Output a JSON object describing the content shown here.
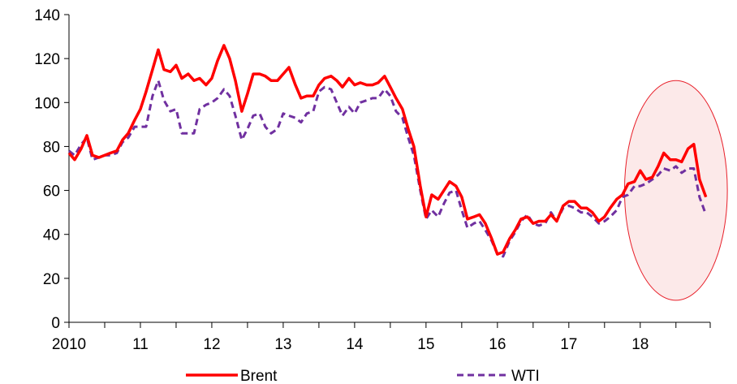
{
  "chart_data": {
    "type": "line",
    "title": "",
    "xlabel": "",
    "ylabel": "",
    "ylim": [
      0,
      140
    ],
    "y_ticks": [
      "0",
      "20",
      "40",
      "60",
      "80",
      "100",
      "120",
      "140"
    ],
    "x_tick_labels": [
      "2010",
      "11",
      "12",
      "13",
      "14",
      "15",
      "16",
      "17",
      "18"
    ],
    "x_tick_values": [
      2010,
      2011,
      2012,
      2013,
      2014,
      2015,
      2016,
      2017,
      2018
    ],
    "xlim": [
      2010,
      2018.98
    ],
    "grid": false,
    "legend_position": "bottom",
    "x": [
      2010.0,
      2010.08,
      2010.17,
      2010.25,
      2010.33,
      2010.42,
      2010.5,
      2010.58,
      2010.67,
      2010.75,
      2010.83,
      2010.92,
      2011.0,
      2011.08,
      2011.17,
      2011.25,
      2011.33,
      2011.42,
      2011.5,
      2011.58,
      2011.67,
      2011.75,
      2011.83,
      2011.92,
      2012.0,
      2012.08,
      2012.17,
      2012.25,
      2012.33,
      2012.42,
      2012.5,
      2012.58,
      2012.67,
      2012.75,
      2012.83,
      2012.92,
      2013.0,
      2013.08,
      2013.17,
      2013.25,
      2013.33,
      2013.42,
      2013.5,
      2013.58,
      2013.67,
      2013.75,
      2013.83,
      2013.92,
      2014.0,
      2014.08,
      2014.17,
      2014.25,
      2014.33,
      2014.42,
      2014.5,
      2014.58,
      2014.67,
      2014.75,
      2014.83,
      2014.92,
      2015.0,
      2015.08,
      2015.17,
      2015.25,
      2015.33,
      2015.42,
      2015.5,
      2015.58,
      2015.67,
      2015.75,
      2015.83,
      2015.92,
      2016.0,
      2016.08,
      2016.17,
      2016.25,
      2016.33,
      2016.42,
      2016.5,
      2016.58,
      2016.67,
      2016.75,
      2016.83,
      2016.92,
      2017.0,
      2017.08,
      2017.17,
      2017.25,
      2017.33,
      2017.42,
      2017.5,
      2017.58,
      2017.67,
      2017.75,
      2017.83,
      2017.92,
      2018.0,
      2018.08,
      2018.17,
      2018.25,
      2018.33,
      2018.42,
      2018.5,
      2018.58,
      2018.67,
      2018.75,
      2018.83,
      2018.92
    ],
    "series": [
      {
        "name": "Brent",
        "color": "#ff0000",
        "style": "solid",
        "values": [
          77,
          74,
          79,
          85,
          76,
          75,
          76,
          77,
          78,
          83,
          86,
          92,
          97,
          105,
          115,
          124,
          115,
          114,
          117,
          111,
          113,
          110,
          111,
          108,
          111,
          119,
          126,
          120,
          110,
          96,
          104,
          113,
          113,
          112,
          110,
          110,
          113,
          116,
          108,
          102,
          103,
          103,
          108,
          111,
          112,
          110,
          107,
          111,
          108,
          109,
          108,
          108,
          109,
          112,
          107,
          102,
          97,
          88,
          80,
          62,
          48,
          58,
          56,
          60,
          64,
          62,
          57,
          47,
          48,
          49,
          45,
          38,
          31,
          32,
          38,
          42,
          47,
          48,
          45,
          46,
          46,
          49,
          46,
          53,
          55,
          55,
          52,
          52,
          50,
          46,
          48,
          52,
          56,
          58,
          63,
          64,
          69,
          65,
          66,
          71,
          77,
          74,
          74,
          73,
          79,
          81,
          65,
          57
        ]
      },
      {
        "name": "WTI",
        "color": "#7030a0",
        "style": "dashed",
        "values": [
          78,
          76,
          81,
          84,
          74,
          75,
          76,
          76,
          77,
          82,
          84,
          89,
          89,
          89,
          103,
          110,
          101,
          96,
          97,
          86,
          86,
          86,
          97,
          99,
          100,
          102,
          106,
          103,
          94,
          83,
          88,
          94,
          95,
          89,
          86,
          88,
          95,
          94,
          93,
          91,
          95,
          96,
          105,
          107,
          106,
          100,
          94,
          98,
          95,
          100,
          101,
          102,
          102,
          106,
          103,
          96,
          93,
          84,
          76,
          60,
          47,
          51,
          48,
          54,
          59,
          60,
          51,
          43,
          45,
          46,
          42,
          37,
          31,
          30,
          37,
          41,
          46,
          49,
          45,
          44,
          45,
          50,
          46,
          52,
          53,
          52,
          50,
          50,
          48,
          45,
          46,
          48,
          51,
          57,
          58,
          62,
          62,
          63,
          65,
          67,
          70,
          69,
          71,
          68,
          70,
          70,
          57,
          49
        ]
      }
    ],
    "legend": [
      {
        "label": "Brent",
        "series": 0
      },
      {
        "label": "WTI",
        "series": 1
      }
    ],
    "highlight": {
      "shape": "ellipse",
      "x_center": 2018.5,
      "y_center": 60,
      "x_radius": 0.72,
      "y_radius": 50,
      "fill": "#fbe5e5",
      "stroke": "#e8202a"
    }
  }
}
